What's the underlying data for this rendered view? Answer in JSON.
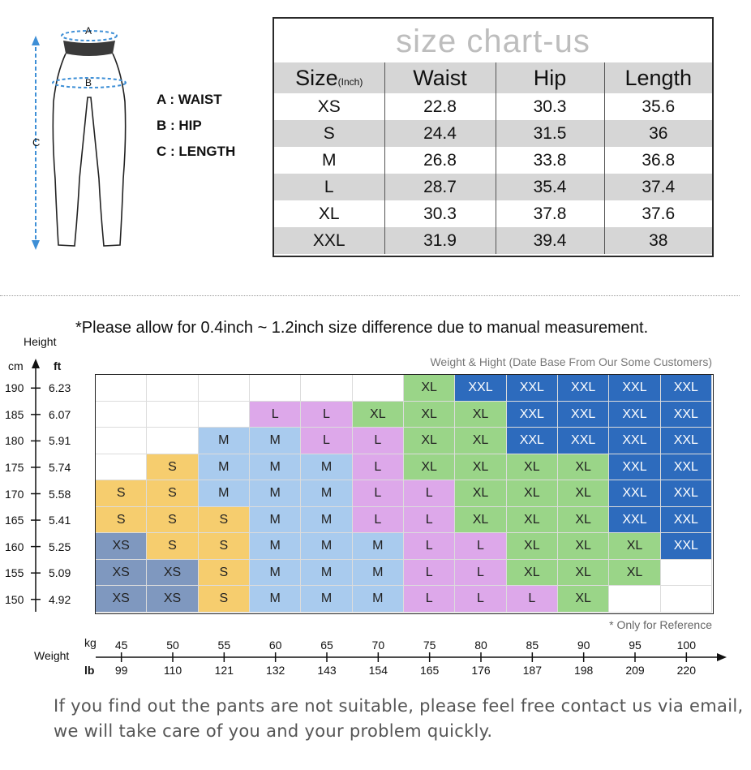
{
  "legend": {
    "marker_a": "A",
    "marker_b": "B",
    "marker_c": "C",
    "waist": "A : WAIST",
    "hip": "B : HIP",
    "length": "C : LENGTH"
  },
  "size_chart": {
    "title": "size chart-us",
    "header": {
      "size": "Size",
      "unit": "(Inch)",
      "waist": "Waist",
      "hip": "Hip",
      "length": "Length"
    },
    "rows": [
      {
        "size": "XS",
        "waist": "22.8",
        "hip": "30.3",
        "length": "35.6"
      },
      {
        "size": "S",
        "waist": "24.4",
        "hip": "31.5",
        "length": "36"
      },
      {
        "size": "M",
        "waist": "26.8",
        "hip": "33.8",
        "length": "36.8"
      },
      {
        "size": "L",
        "waist": "28.7",
        "hip": "35.4",
        "length": "37.4"
      },
      {
        "size": "XL",
        "waist": "30.3",
        "hip": "37.8",
        "length": "37.6"
      },
      {
        "size": "XXL",
        "waist": "31.9",
        "hip": "39.4",
        "length": "38"
      }
    ]
  },
  "note": "*Please allow for 0.4inch ~ 1.2inch size difference due to manual measurement.",
  "grid": {
    "caption": "Weight & Hight (Date Base From Our Some Customers)",
    "reference": "* Only for Reference",
    "height_axis": {
      "title": "Height",
      "cm_unit": "cm",
      "ft_unit": "ft",
      "cm": [
        "190",
        "185",
        "180",
        "175",
        "170",
        "165",
        "160",
        "155",
        "150"
      ],
      "ft": [
        "6.23",
        "6.07",
        "5.91",
        "5.74",
        "5.58",
        "5.41",
        "5.25",
        "5.09",
        "4.92"
      ]
    },
    "weight_axis": {
      "title": "Weight",
      "kg_unit": "kg",
      "lb_unit": "lb",
      "kg": [
        "45",
        "50",
        "55",
        "60",
        "65",
        "70",
        "75",
        "80",
        "85",
        "90",
        "95",
        "100"
      ],
      "lb": [
        "99",
        "110",
        "121",
        "132",
        "143",
        "154",
        "165",
        "176",
        "187",
        "198",
        "209",
        "220"
      ]
    },
    "rows": [
      [
        "",
        "",
        "",
        "",
        "",
        "",
        "XL",
        "XXL",
        "XXL",
        "XXL",
        "XXL",
        "XXL"
      ],
      [
        "",
        "",
        "",
        "L",
        "L",
        "XL",
        "XL",
        "XL",
        "XXL",
        "XXL",
        "XXL",
        "XXL"
      ],
      [
        "",
        "",
        "M",
        "M",
        "L",
        "L",
        "XL",
        "XL",
        "XXL",
        "XXL",
        "XXL",
        "XXL"
      ],
      [
        "",
        "S",
        "M",
        "M",
        "M",
        "L",
        "XL",
        "XL",
        "XL",
        "XL",
        "XXL",
        "XXL"
      ],
      [
        "S",
        "S",
        "M",
        "M",
        "M",
        "L",
        "L",
        "XL",
        "XL",
        "XL",
        "XXL",
        "XXL"
      ],
      [
        "S",
        "S",
        "S",
        "M",
        "M",
        "L",
        "L",
        "XL",
        "XL",
        "XL",
        "XXL",
        "XXL"
      ],
      [
        "XS",
        "S",
        "S",
        "M",
        "M",
        "M",
        "L",
        "L",
        "XL",
        "XL",
        "XL",
        "XXL"
      ],
      [
        "XS",
        "XS",
        "S",
        "M",
        "M",
        "M",
        "L",
        "L",
        "XL",
        "XL",
        "XL",
        ""
      ],
      [
        "XS",
        "XS",
        "S",
        "M",
        "M",
        "M",
        "L",
        "L",
        "L",
        "XL",
        "",
        ""
      ]
    ],
    "colors": {
      "XS": "#7f98bf",
      "S": "#f6cd6e",
      "M": "#a9cbee",
      "L": "#dda8ea",
      "XL": "#9ad588",
      "XXL": "#2d6bbd",
      "empty": "#ffffff"
    }
  },
  "footer": {
    "line1": "If you find out the pants are not suitable, please feel free contact us via email,",
    "line2": "we will take care of you and your problem quickly."
  }
}
